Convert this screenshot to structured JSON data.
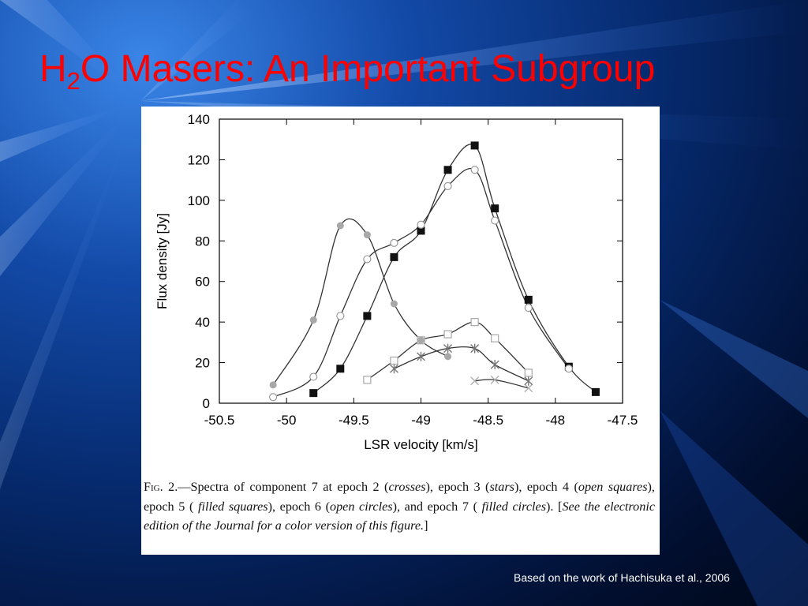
{
  "slide": {
    "title_prefix": "H",
    "title_sub": "2",
    "title_rest": "O Masers: An Important Subgroup",
    "title_color": "#ff0000",
    "footer": "Based on the work of Hachisuka et al., 2006"
  },
  "figure": {
    "caption_fig": "Fig",
    "caption_parts": [
      ". 2.—Spectra of component 7 at epoch 2 (",
      "crosses",
      "), epoch 3 (",
      "stars",
      "), epoch 4 (",
      "open squares",
      "), epoch 5 ( ",
      "filled squares",
      "), epoch 6 (",
      "open circles",
      "), and epoch 7 ( ",
      "filled circles",
      "). [",
      "See the electronic edition of the Journal for a color version of this figure.",
      "]"
    ]
  },
  "chart_data": {
    "type": "scatter",
    "xlabel": "LSR velocity [km/s]",
    "ylabel": "Flux density [Jy]",
    "xlim": [
      -50.5,
      -47.5
    ],
    "ylim": [
      0,
      140
    ],
    "x_ticks": [
      -50.5,
      -50,
      -49.5,
      -49,
      -48.5,
      -48,
      -47.5
    ],
    "x_tick_labels": [
      "-50.5",
      "-50",
      "-49.5",
      "-49",
      "-48.5",
      "-48",
      "-47.5"
    ],
    "y_ticks": [
      0,
      20,
      40,
      60,
      80,
      100,
      120,
      140
    ],
    "y_tick_labels": [
      "0",
      "20",
      "40",
      "60",
      "80",
      "100",
      "120",
      "140"
    ],
    "grid": false,
    "series": [
      {
        "name": "epoch 2 (crosses)",
        "marker": "cross",
        "color": "#b0b0b0",
        "points": [
          [
            -48.6,
            11
          ],
          [
            -48.45,
            11.5
          ],
          [
            -48.2,
            7.5
          ]
        ]
      },
      {
        "name": "epoch 3 (stars)",
        "marker": "star",
        "color": "#777777",
        "points": [
          [
            -49.2,
            17
          ],
          [
            -49.0,
            23
          ],
          [
            -48.8,
            27
          ],
          [
            -48.6,
            27
          ],
          [
            -48.45,
            19
          ],
          [
            -48.2,
            11
          ]
        ]
      },
      {
        "name": "epoch 4 (open squares)",
        "marker": "open-square",
        "color": "#a8a8a8",
        "points": [
          [
            -49.4,
            11.5
          ],
          [
            -49.2,
            21
          ],
          [
            -49.0,
            31
          ],
          [
            -48.8,
            34
          ],
          [
            -48.6,
            40
          ],
          [
            -48.45,
            32
          ],
          [
            -48.2,
            15
          ]
        ]
      },
      {
        "name": "epoch 5 (filled squares)",
        "marker": "filled-square",
        "color": "#111111",
        "points": [
          [
            -49.8,
            5
          ],
          [
            -49.6,
            17
          ],
          [
            -49.4,
            43
          ],
          [
            -49.2,
            72
          ],
          [
            -49.0,
            85
          ],
          [
            -48.8,
            115
          ],
          [
            -48.6,
            127
          ],
          [
            -48.45,
            96
          ],
          [
            -48.2,
            51
          ],
          [
            -47.9,
            18
          ],
          [
            -47.7,
            5.5
          ]
        ]
      },
      {
        "name": "epoch 6 (open circles)",
        "marker": "open-circle",
        "color": "#9a9a9a",
        "points": [
          [
            -50.1,
            3
          ],
          [
            -49.8,
            13
          ],
          [
            -49.6,
            43
          ],
          [
            -49.4,
            71
          ],
          [
            -49.2,
            79
          ],
          [
            -49.0,
            88
          ],
          [
            -48.8,
            107
          ],
          [
            -48.6,
            115
          ],
          [
            -48.45,
            90
          ],
          [
            -48.2,
            47
          ],
          [
            -47.9,
            17
          ]
        ]
      },
      {
        "name": "epoch 7 (filled circles)",
        "marker": "filled-circle",
        "color": "#a8a8a8",
        "points": [
          [
            -50.1,
            9
          ],
          [
            -49.8,
            41
          ],
          [
            -49.6,
            87.5
          ],
          [
            -49.4,
            83
          ],
          [
            -49.2,
            49
          ],
          [
            -49.0,
            31
          ],
          [
            -48.8,
            23
          ]
        ]
      }
    ]
  }
}
